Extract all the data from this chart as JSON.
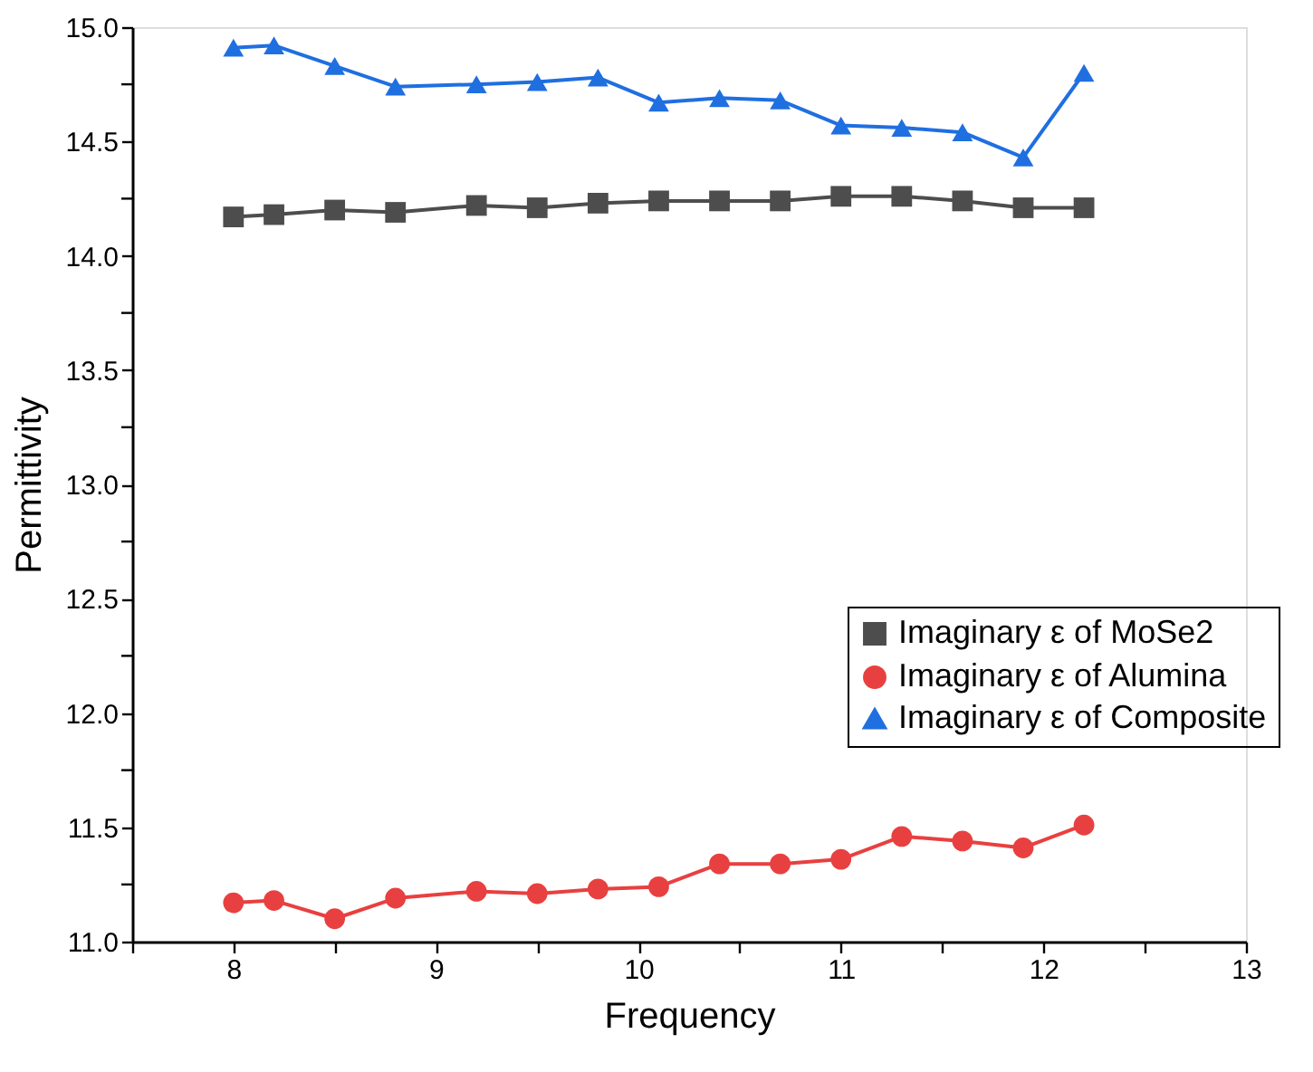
{
  "chart_data": {
    "type": "line",
    "xlabel": "Frequency",
    "ylabel": "Permittivity",
    "x": [
      8,
      8.2,
      8.5,
      8.8,
      9.2,
      9.5,
      9.8,
      10.1,
      10.4,
      10.7,
      11.0,
      11.3,
      11.6,
      11.9,
      12.2
    ],
    "series": [
      {
        "name": "Imaginary ε of MoSe2",
        "color": "#4d4d4d",
        "marker": "square",
        "values": [
          14.17,
          14.18,
          14.2,
          14.19,
          14.22,
          14.21,
          14.23,
          14.24,
          14.24,
          14.24,
          14.26,
          14.26,
          14.24,
          14.21,
          14.21
        ]
      },
      {
        "name": "Imaginary ε of Alumina",
        "color": "#e84040",
        "marker": "circle",
        "values": [
          11.17,
          11.18,
          11.1,
          11.19,
          11.22,
          11.21,
          11.23,
          11.24,
          11.34,
          11.34,
          11.36,
          11.46,
          11.44,
          11.41,
          11.51
        ]
      },
      {
        "name": "Imaginary ε of Composite",
        "color": "#1f6fe0",
        "marker": "triangle",
        "values": [
          14.91,
          14.92,
          14.83,
          14.74,
          14.75,
          14.76,
          14.78,
          14.67,
          14.69,
          14.68,
          14.57,
          14.56,
          14.54,
          14.43,
          14.8
        ]
      }
    ],
    "xlim": [
      7.5,
      13
    ],
    "xticks": [
      {
        "value": 7.5,
        "label": null
      },
      8,
      {
        "value": 8.5,
        "label": null
      },
      9,
      {
        "value": 9.5,
        "label": null
      },
      10,
      {
        "value": 10.5,
        "label": null
      },
      11,
      {
        "value": 11.5,
        "label": null
      },
      12,
      {
        "value": 12.5,
        "label": null
      },
      13
    ],
    "ylim": [
      11,
      15
    ],
    "yticks": [
      {
        "value": 11,
        "label": "11.0"
      },
      {
        "value": 11.25,
        "label": null
      },
      {
        "value": 11.5,
        "label": "11.5"
      },
      {
        "value": 11.75,
        "label": null
      },
      {
        "value": 12,
        "label": "12.0"
      },
      {
        "value": 12.25,
        "label": null
      },
      {
        "value": 12.5,
        "label": "12.5"
      },
      {
        "value": 12.75,
        "label": null
      },
      {
        "value": 13,
        "label": "13.0"
      },
      {
        "value": 13.25,
        "label": null
      },
      {
        "value": 13.5,
        "label": "13.5"
      },
      {
        "value": 13.75,
        "label": null
      },
      {
        "value": 14,
        "label": "14.0"
      },
      {
        "value": 14.25,
        "label": null
      },
      {
        "value": 14.5,
        "label": "14.5"
      },
      {
        "value": 14.75,
        "label": null
      },
      {
        "value": 15,
        "label": "15.0"
      }
    ],
    "grid": false,
    "legend": "right",
    "line_style": "solid"
  }
}
